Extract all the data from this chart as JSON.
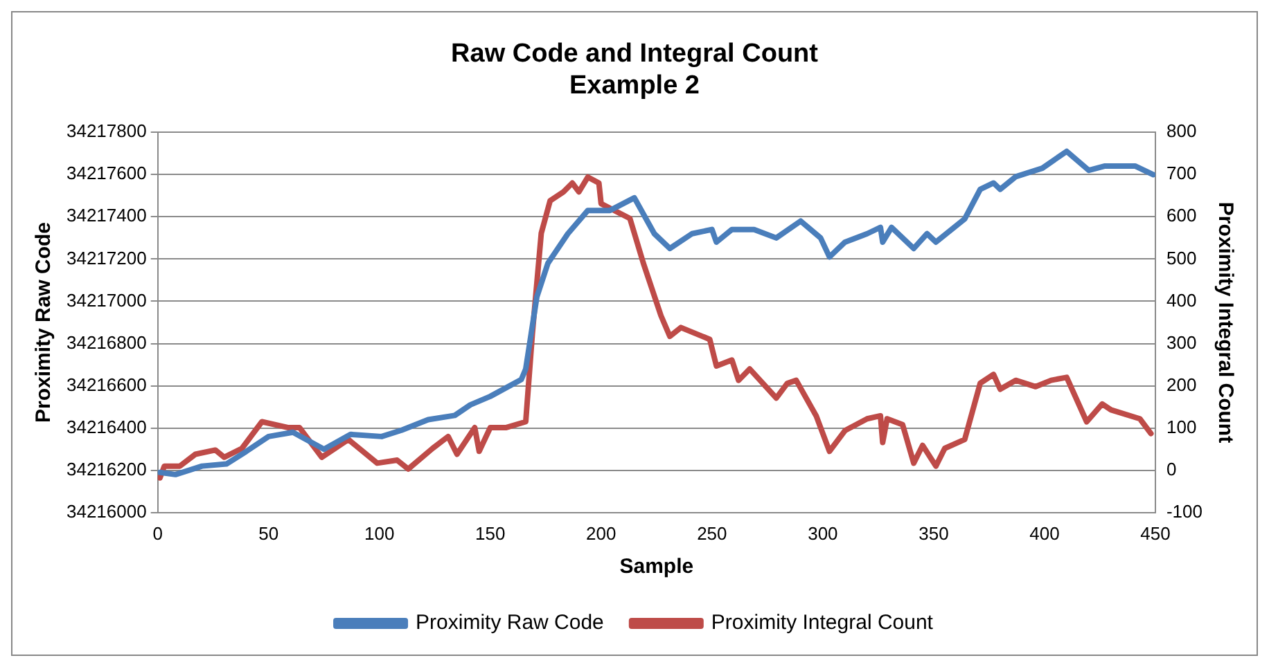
{
  "chart_data": {
    "type": "line",
    "title": "Raw Code and Integral Count\nExample 2",
    "xlabel": "Sample",
    "ylabel": "Proximity Raw Code",
    "y2label": "Proximity Integral Count",
    "xlim": [
      0,
      450
    ],
    "xticks": [
      0,
      50,
      100,
      150,
      200,
      250,
      300,
      350,
      400,
      450
    ],
    "ylim": [
      34216000,
      34217800
    ],
    "yticks": [
      34216000,
      34216200,
      34216400,
      34216600,
      34216800,
      34217000,
      34217200,
      34217400,
      34217600,
      34217800
    ],
    "y2lim": [
      -100,
      800
    ],
    "y2ticks": [
      -100,
      0,
      100,
      200,
      300,
      400,
      500,
      600,
      700,
      800
    ],
    "grid": "y",
    "legend": "bottom",
    "marker": "none",
    "line_style": "solid",
    "series": [
      {
        "name": "Proximity Raw Code",
        "color": "#4a7ebb",
        "x": [
          1,
          8,
          20,
          31,
          40,
          50,
          61,
          75,
          87,
          101,
          110,
          122,
          134,
          141,
          150,
          164,
          166,
          171,
          176,
          185,
          194,
          204,
          215,
          224,
          231,
          241,
          250,
          252,
          259,
          269,
          279,
          290,
          299,
          303,
          310,
          320,
          326,
          327,
          331,
          341,
          347,
          351,
          364,
          371,
          377,
          380,
          387,
          399,
          410,
          420,
          427,
          441,
          449
        ],
        "values": [
          34216190,
          34216180,
          34216220,
          34216230,
          34216290,
          34216360,
          34216380,
          34216300,
          34216370,
          34216360,
          34216390,
          34216440,
          34216460,
          34216510,
          34216550,
          34216630,
          34216680,
          34217020,
          34217180,
          34217320,
          34217430,
          34217430,
          34217490,
          34217320,
          34217250,
          34217320,
          34217340,
          34217280,
          34217340,
          34217340,
          34217300,
          34217380,
          34217300,
          34217210,
          34217280,
          34217320,
          34217350,
          34217280,
          34217350,
          34217250,
          34217320,
          34217280,
          34217390,
          34217530,
          34217560,
          34217530,
          34217590,
          34217630,
          34217710,
          34217620,
          34217640,
          34217640,
          34217600
        ]
      },
      {
        "name": "Proximity Integral Count",
        "color": "#be4b48",
        "axis": "y2",
        "x": [
          1,
          3,
          10,
          17,
          26,
          30,
          38,
          47,
          59,
          64,
          74,
          86,
          99,
          108,
          113,
          124,
          131,
          135,
          143,
          145,
          150,
          157,
          166,
          169,
          173,
          177,
          183,
          187,
          190,
          194,
          199,
          200,
          213,
          219,
          227,
          231,
          236,
          249,
          252,
          259,
          262,
          267,
          279,
          284,
          288,
          297,
          303,
          310,
          320,
          326,
          327,
          329,
          336,
          341,
          345,
          351,
          355,
          364,
          371,
          377,
          380,
          387,
          396,
          403,
          410,
          419,
          426,
          430,
          443,
          448
        ],
        "values": [
          -18,
          10,
          10,
          38,
          48,
          31,
          52,
          115,
          101,
          101,
          31,
          73,
          17,
          24,
          3,
          52,
          80,
          38,
          101,
          45,
          101,
          101,
          115,
          324,
          561,
          638,
          659,
          680,
          659,
          694,
          680,
          631,
          596,
          491,
          366,
          317,
          338,
          310,
          247,
          261,
          213,
          240,
          171,
          206,
          213,
          129,
          45,
          94,
          122,
          129,
          66,
          122,
          108,
          17,
          59,
          10,
          52,
          73,
          206,
          227,
          192,
          213,
          198,
          213,
          220,
          115,
          157,
          143,
          122,
          87
        ]
      }
    ]
  }
}
